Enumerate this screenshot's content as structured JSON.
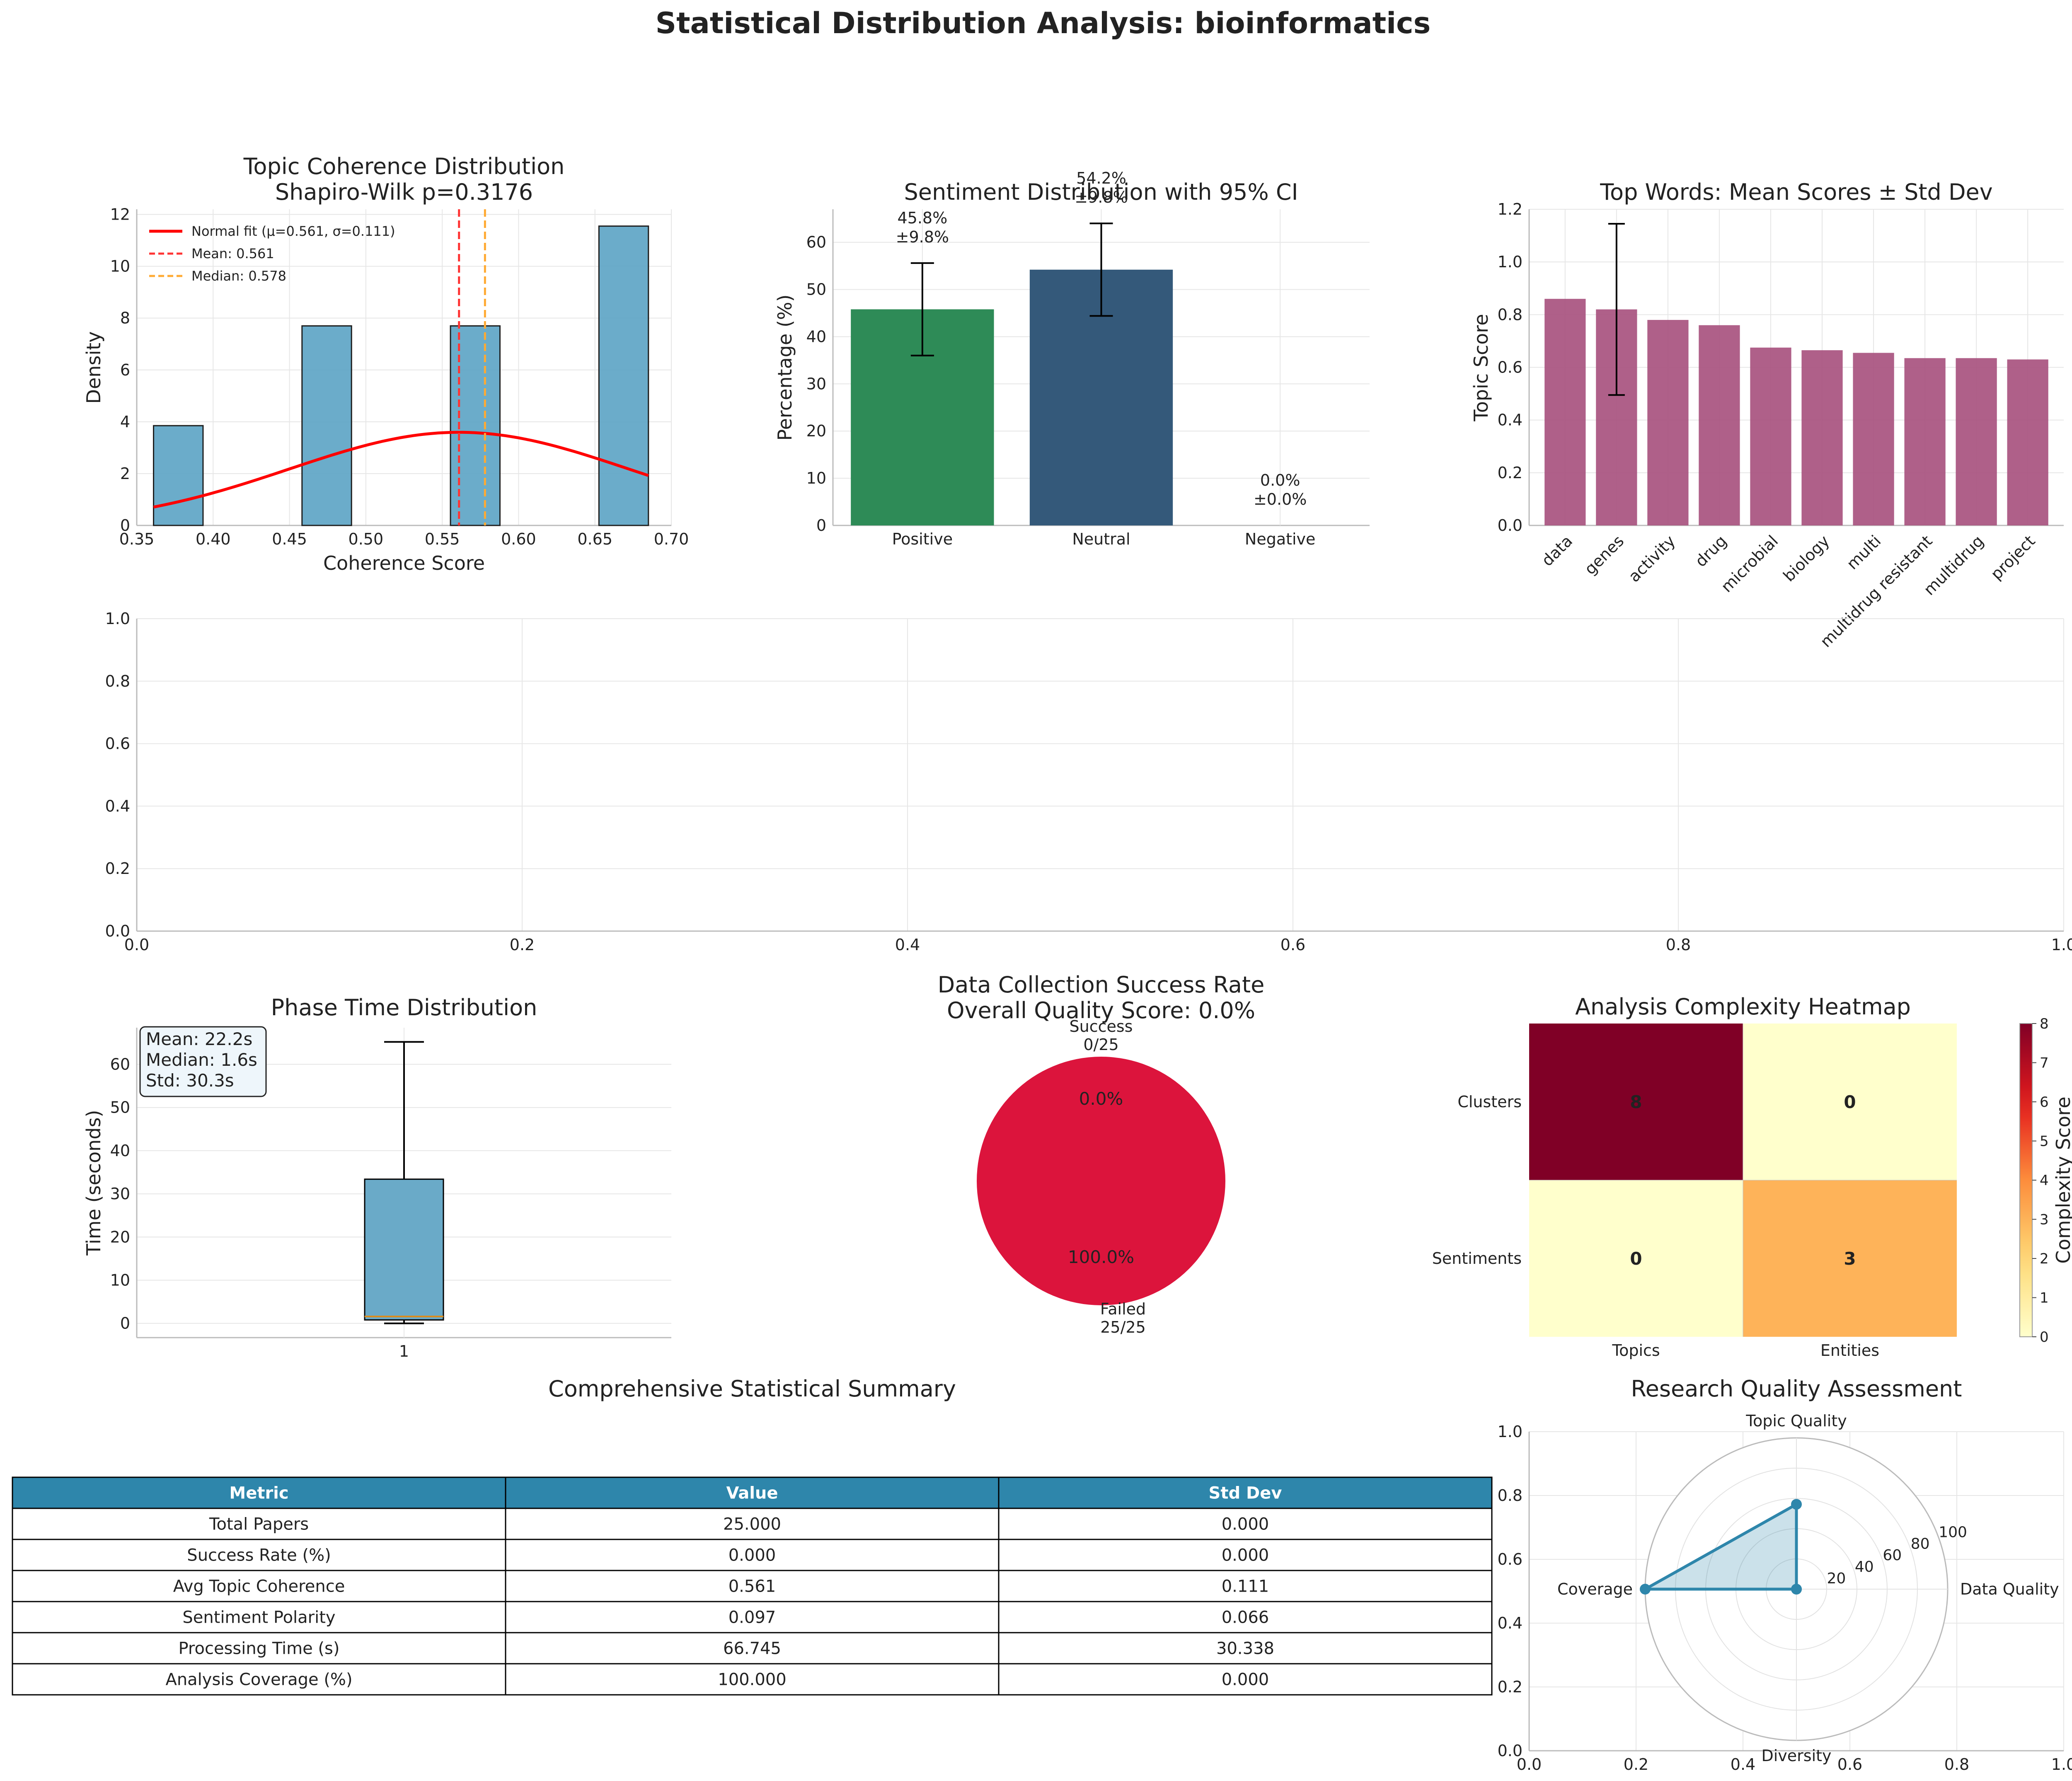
{
  "suptitle": "Statistical Distribution Analysis: bioinformatics",
  "colors": {
    "hist": "#5ba3c4",
    "normal": "#ff0000",
    "mean": "#ff3333",
    "median": "#ffaa33",
    "positive": "#2e8b57",
    "neutral": "#34597a",
    "words": "#a8527f",
    "box": "#6aaac8",
    "failed": "#dc143c",
    "radar": "#2e86ab",
    "table_header": "#2e86ab"
  },
  "chart_data": [
    {
      "id": "coherence",
      "type": "bar",
      "title": "Topic Coherence Distribution\nShapiro-Wilk p=0.3176",
      "xlabel": "Coherence Score",
      "ylabel": "Density",
      "xlim": [
        0.35,
        0.7
      ],
      "ylim": [
        0,
        12.2
      ],
      "xticks": [
        0.35,
        0.4,
        0.45,
        0.5,
        0.55,
        0.6,
        0.65,
        0.7
      ],
      "xticklabels": [
        "0.35",
        "0.40",
        "0.45",
        "0.50",
        "0.55",
        "0.60",
        "0.65",
        "0.70"
      ],
      "yticks": [
        0,
        2,
        4,
        6,
        8,
        10,
        12
      ],
      "yticklabels": [
        "0",
        "2",
        "4",
        "6",
        "8",
        "10",
        "12"
      ],
      "bins": [
        {
          "x0": 0.361,
          "x1": 0.3934,
          "density": 3.85
        },
        {
          "x0": 0.3934,
          "x1": 0.4258,
          "density": 0
        },
        {
          "x0": 0.4258,
          "x1": 0.4582,
          "density": 0
        },
        {
          "x0": 0.4582,
          "x1": 0.4906,
          "density": 7.7
        },
        {
          "x0": 0.4906,
          "x1": 0.523,
          "density": 0
        },
        {
          "x0": 0.523,
          "x1": 0.5554,
          "density": 0
        },
        {
          "x0": 0.5554,
          "x1": 0.5878,
          "density": 7.7
        },
        {
          "x0": 0.5878,
          "x1": 0.6202,
          "density": 0
        },
        {
          "x0": 0.6202,
          "x1": 0.6526,
          "density": 0
        },
        {
          "x0": 0.6526,
          "x1": 0.685,
          "density": 11.55
        }
      ],
      "normal_fit": {
        "mu": 0.561,
        "sigma": 0.111,
        "x_range": [
          0.361,
          0.685
        ]
      },
      "mean": 0.561,
      "median": 0.578,
      "legend": [
        "Normal fit (μ=0.561, σ=0.111)",
        "Mean: 0.561",
        "Median: 0.578"
      ],
      "legend_loc": "upper left",
      "grid": true
    },
    {
      "id": "sentiment",
      "type": "bar",
      "title": "Sentiment Distribution with 95% CI",
      "ylabel": "Percentage (%)",
      "categories": [
        "Positive",
        "Neutral",
        "Negative"
      ],
      "values": [
        45.8,
        54.2,
        0.0
      ],
      "errors": [
        9.8,
        9.8,
        0.0
      ],
      "value_labels": [
        "45.8%\n±9.8%",
        "54.2%\n±9.8%",
        "0.0%\n±0.0%"
      ],
      "ylim": [
        0,
        67
      ],
      "yticks": [
        0,
        10,
        20,
        30,
        40,
        50,
        60
      ],
      "yticklabels": [
        "0",
        "10",
        "20",
        "30",
        "40",
        "50",
        "60"
      ],
      "grid": true
    },
    {
      "id": "words",
      "type": "bar",
      "title": "Top Words: Mean Scores ± Std Dev",
      "ylabel": "Topic Score",
      "categories": [
        "data",
        "genes",
        "activity",
        "drug",
        "microbial",
        "biology",
        "multi",
        "multidrug resistant",
        "multidrug",
        "project"
      ],
      "values": [
        0.86,
        0.82,
        0.78,
        0.76,
        0.675,
        0.665,
        0.655,
        0.635,
        0.635,
        0.63
      ],
      "errors": [
        null,
        0.325,
        null,
        null,
        null,
        null,
        null,
        null,
        null,
        null
      ],
      "ylim": [
        0,
        1.2
      ],
      "yticks": [
        0.0,
        0.2,
        0.4,
        0.6,
        0.8,
        1.0,
        1.2
      ],
      "yticklabels": [
        "0.0",
        "0.2",
        "0.4",
        "0.6",
        "0.8",
        "1.0",
        "1.2"
      ],
      "grid": true
    },
    {
      "id": "empty",
      "type": "line",
      "xlim": [
        0,
        1
      ],
      "ylim": [
        0,
        1
      ],
      "xticks": [
        0,
        0.2,
        0.4,
        0.6,
        0.8,
        1.0
      ],
      "xticklabels": [
        "0.0",
        "0.2",
        "0.4",
        "0.6",
        "0.8",
        "1.0"
      ],
      "yticks": [
        0,
        0.2,
        0.4,
        0.6,
        0.8,
        1.0
      ],
      "yticklabels": [
        "0.0",
        "0.2",
        "0.4",
        "0.6",
        "0.8",
        "1.0"
      ],
      "grid": true
    },
    {
      "id": "phase",
      "type": "box",
      "title": "Phase Time Distribution",
      "ylabel": "Time (seconds)",
      "categories": [
        "1"
      ],
      "box": {
        "whislo": 0,
        "q1": 0.8,
        "median": 1.6,
        "q3": 33.4,
        "whishi": 65.2
      },
      "stats_text": [
        "Mean: 22.2s",
        "Median: 1.6s",
        "Std: 30.3s"
      ],
      "ylim": [
        -3.3,
        68.5
      ],
      "yticks": [
        0,
        10,
        20,
        30,
        40,
        50,
        60
      ],
      "yticklabels": [
        "0",
        "10",
        "20",
        "30",
        "40",
        "50",
        "60"
      ],
      "grid": true
    },
    {
      "id": "success",
      "type": "pie",
      "title": "Data Collection Success Rate\nOverall Quality Score: 0.0%",
      "labels": [
        "Success\n0/25",
        "Failed\n25/25"
      ],
      "values": [
        0,
        25
      ],
      "pct_labels": [
        "0.0%",
        "100.0%"
      ]
    },
    {
      "id": "heatmap",
      "type": "heatmap",
      "title": "Analysis Complexity Heatmap",
      "row_labels": [
        "Clusters",
        "Sentiments"
      ],
      "col_labels": [
        "Topics",
        "Entities"
      ],
      "matrix": [
        [
          8,
          0
        ],
        [
          0,
          3
        ]
      ],
      "cbar_label": "Complexity Score",
      "cbar_range": [
        0,
        8
      ],
      "cbar_ticks": [
        "0",
        "1",
        "2",
        "3",
        "4",
        "5",
        "6",
        "7",
        "8"
      ]
    },
    {
      "id": "radar",
      "type": "radar",
      "title": "Research Quality Assessment",
      "axes": [
        "Topic Quality",
        "Data Quality",
        "Diversity",
        "Coverage"
      ],
      "values": [
        56.1,
        0,
        0,
        100
      ],
      "rlim": [
        0,
        100
      ],
      "rticks": [
        "20",
        "40",
        "60",
        "80",
        "100"
      ],
      "frame_xticklabels": [
        "0.0",
        "0.2",
        "0.4",
        "0.6",
        "0.8",
        "1.0"
      ],
      "frame_yticklabels": [
        "0.0",
        "0.2",
        "0.4",
        "0.6",
        "0.8",
        "1.0"
      ]
    }
  ],
  "table": {
    "title": "Comprehensive Statistical Summary",
    "columns": [
      "Metric",
      "Value",
      "Std Dev"
    ],
    "rows": [
      [
        "Total Papers",
        "25.000",
        "0.000"
      ],
      [
        "Success Rate (%)",
        "0.000",
        "0.000"
      ],
      [
        "Avg Topic Coherence",
        "0.561",
        "0.111"
      ],
      [
        "Sentiment Polarity",
        "0.097",
        "0.066"
      ],
      [
        "Processing Time (s)",
        "66.745",
        "30.338"
      ],
      [
        "Analysis Coverage (%)",
        "100.000",
        "0.000"
      ]
    ]
  }
}
